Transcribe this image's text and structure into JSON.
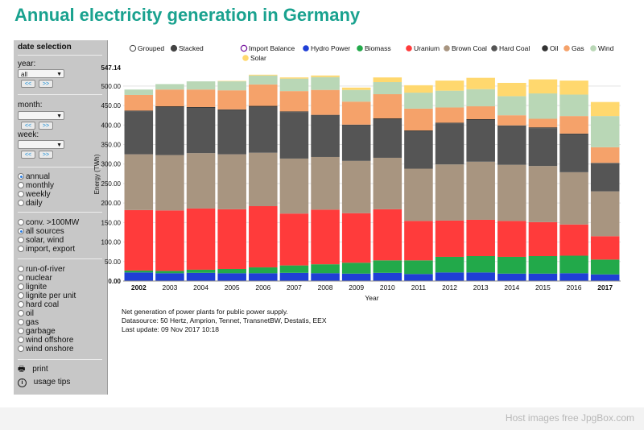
{
  "page": {
    "title": "Annual electricity generation in Germany"
  },
  "sidebar": {
    "header": "date selection",
    "year_label": "year:",
    "year_value": "all",
    "month_label": "month:",
    "week_label": "week:",
    "prev": "<<",
    "next": ">>",
    "period_options": [
      "annual",
      "monthly",
      "weekly",
      "daily"
    ],
    "period_selected": "annual",
    "source_options": [
      "conv. >100MW",
      "all sources",
      "solar, wind",
      "import, export"
    ],
    "source_selected": "all sources",
    "type_options": [
      "run-of-river",
      "nuclear",
      "lignite",
      "lignite per unit",
      "hard coal",
      "oil",
      "gas",
      "garbage",
      "wind offshore",
      "wind onshore"
    ],
    "print_label": "print",
    "tips_label": "usage tips",
    "icons": [
      "printer-icon",
      "info-icon",
      "chevron-down-icon"
    ]
  },
  "legend": {
    "mode_options": [
      "Grouped",
      "Stacked"
    ],
    "mode_selected": "Stacked",
    "items": [
      {
        "name": "Import Balance",
        "color": "#7b1fa2",
        "filled": false
      },
      {
        "name": "Hydro Power",
        "color": "#1f3fd6"
      },
      {
        "name": "Biomass",
        "color": "#22a94a"
      },
      {
        "name": "Uranium",
        "color": "#ff3b3b"
      },
      {
        "name": "Brown Coal",
        "color": "#a89580"
      },
      {
        "name": "Hard Coal",
        "color": "#555555"
      },
      {
        "name": "Oil",
        "color": "#333333"
      },
      {
        "name": "Gas",
        "color": "#f5a26a"
      },
      {
        "name": "Wind",
        "color": "#b9d7b6"
      },
      {
        "name": "Solar",
        "color": "#ffd86e"
      }
    ]
  },
  "notes": {
    "line1": "Net generation of power plants for public power supply.",
    "line2": "Datasource: 50 Hertz, Amprion, Tennet, TransnetBW, Destatis, EEX",
    "line3": "Last update: 09 Nov 2017 10:18"
  },
  "footer": {
    "text": "Host images free JpgBox.com"
  },
  "chart_data": {
    "type": "bar",
    "stacked": true,
    "categories": [
      "2002",
      "2003",
      "2004",
      "2005",
      "2006",
      "2007",
      "2008",
      "2009",
      "2010",
      "2011",
      "2012",
      "2013",
      "2014",
      "2015",
      "2016",
      "2017"
    ],
    "bold_categories": [
      "2002",
      "2017"
    ],
    "ylabel": "Energy (TWh)",
    "xlabel": "Year",
    "ylim": [
      0,
      547.14
    ],
    "ymax_label": "547.14",
    "yticks": [
      "0.00",
      "50.00",
      "100.00",
      "150.00",
      "200.00",
      "250.00",
      "300.00",
      "350.00",
      "400.00",
      "450.00",
      "500.00"
    ],
    "grid": true,
    "series": [
      {
        "name": "Hydro Power",
        "color": "#1f3fd6",
        "values": [
          22,
          20,
          21,
          20,
          20,
          21,
          20,
          19,
          21,
          18,
          22,
          22,
          19,
          19,
          20,
          17
        ]
      },
      {
        "name": "Biomass",
        "color": "#22a94a",
        "values": [
          5,
          6,
          8,
          11,
          15,
          19,
          23,
          28,
          32,
          35,
          40,
          42,
          43,
          45,
          45,
          38
        ]
      },
      {
        "name": "Uranium",
        "color": "#ff3b3b",
        "values": [
          155,
          155,
          157,
          153,
          157,
          133,
          140,
          127,
          131,
          101,
          93,
          93,
          92,
          87,
          80,
          60
        ]
      },
      {
        "name": "Brown Coal",
        "color": "#a89580",
        "values": [
          143,
          142,
          142,
          141,
          137,
          141,
          135,
          134,
          132,
          134,
          144,
          149,
          144,
          144,
          134,
          115
        ]
      },
      {
        "name": "Hard Coal",
        "color": "#555555",
        "values": [
          110,
          123,
          116,
          113,
          118,
          119,
          106,
          91,
          99,
          96,
          105,
          107,
          99,
          97,
          97,
          72
        ]
      },
      {
        "name": "Oil",
        "color": "#333333",
        "values": [
          2,
          2,
          2,
          2,
          2,
          2,
          2,
          2,
          2,
          2,
          2,
          2,
          2,
          2,
          2,
          1
        ]
      },
      {
        "name": "Gas",
        "color": "#f5a26a",
        "values": [
          40,
          43,
          45,
          49,
          55,
          52,
          64,
          59,
          62,
          56,
          39,
          33,
          26,
          22,
          45,
          40
        ]
      },
      {
        "name": "Wind",
        "color": "#b9d7b6",
        "values": [
          14,
          14,
          21,
          23,
          23,
          32,
          33,
          30,
          31,
          41,
          43,
          44,
          49,
          65,
          55,
          80
        ]
      },
      {
        "name": "Solar",
        "color": "#ffd86e",
        "values": [
          0,
          0,
          0,
          1,
          2,
          3,
          4,
          6,
          12,
          19,
          26,
          29,
          34,
          36,
          36,
          36
        ]
      }
    ]
  }
}
